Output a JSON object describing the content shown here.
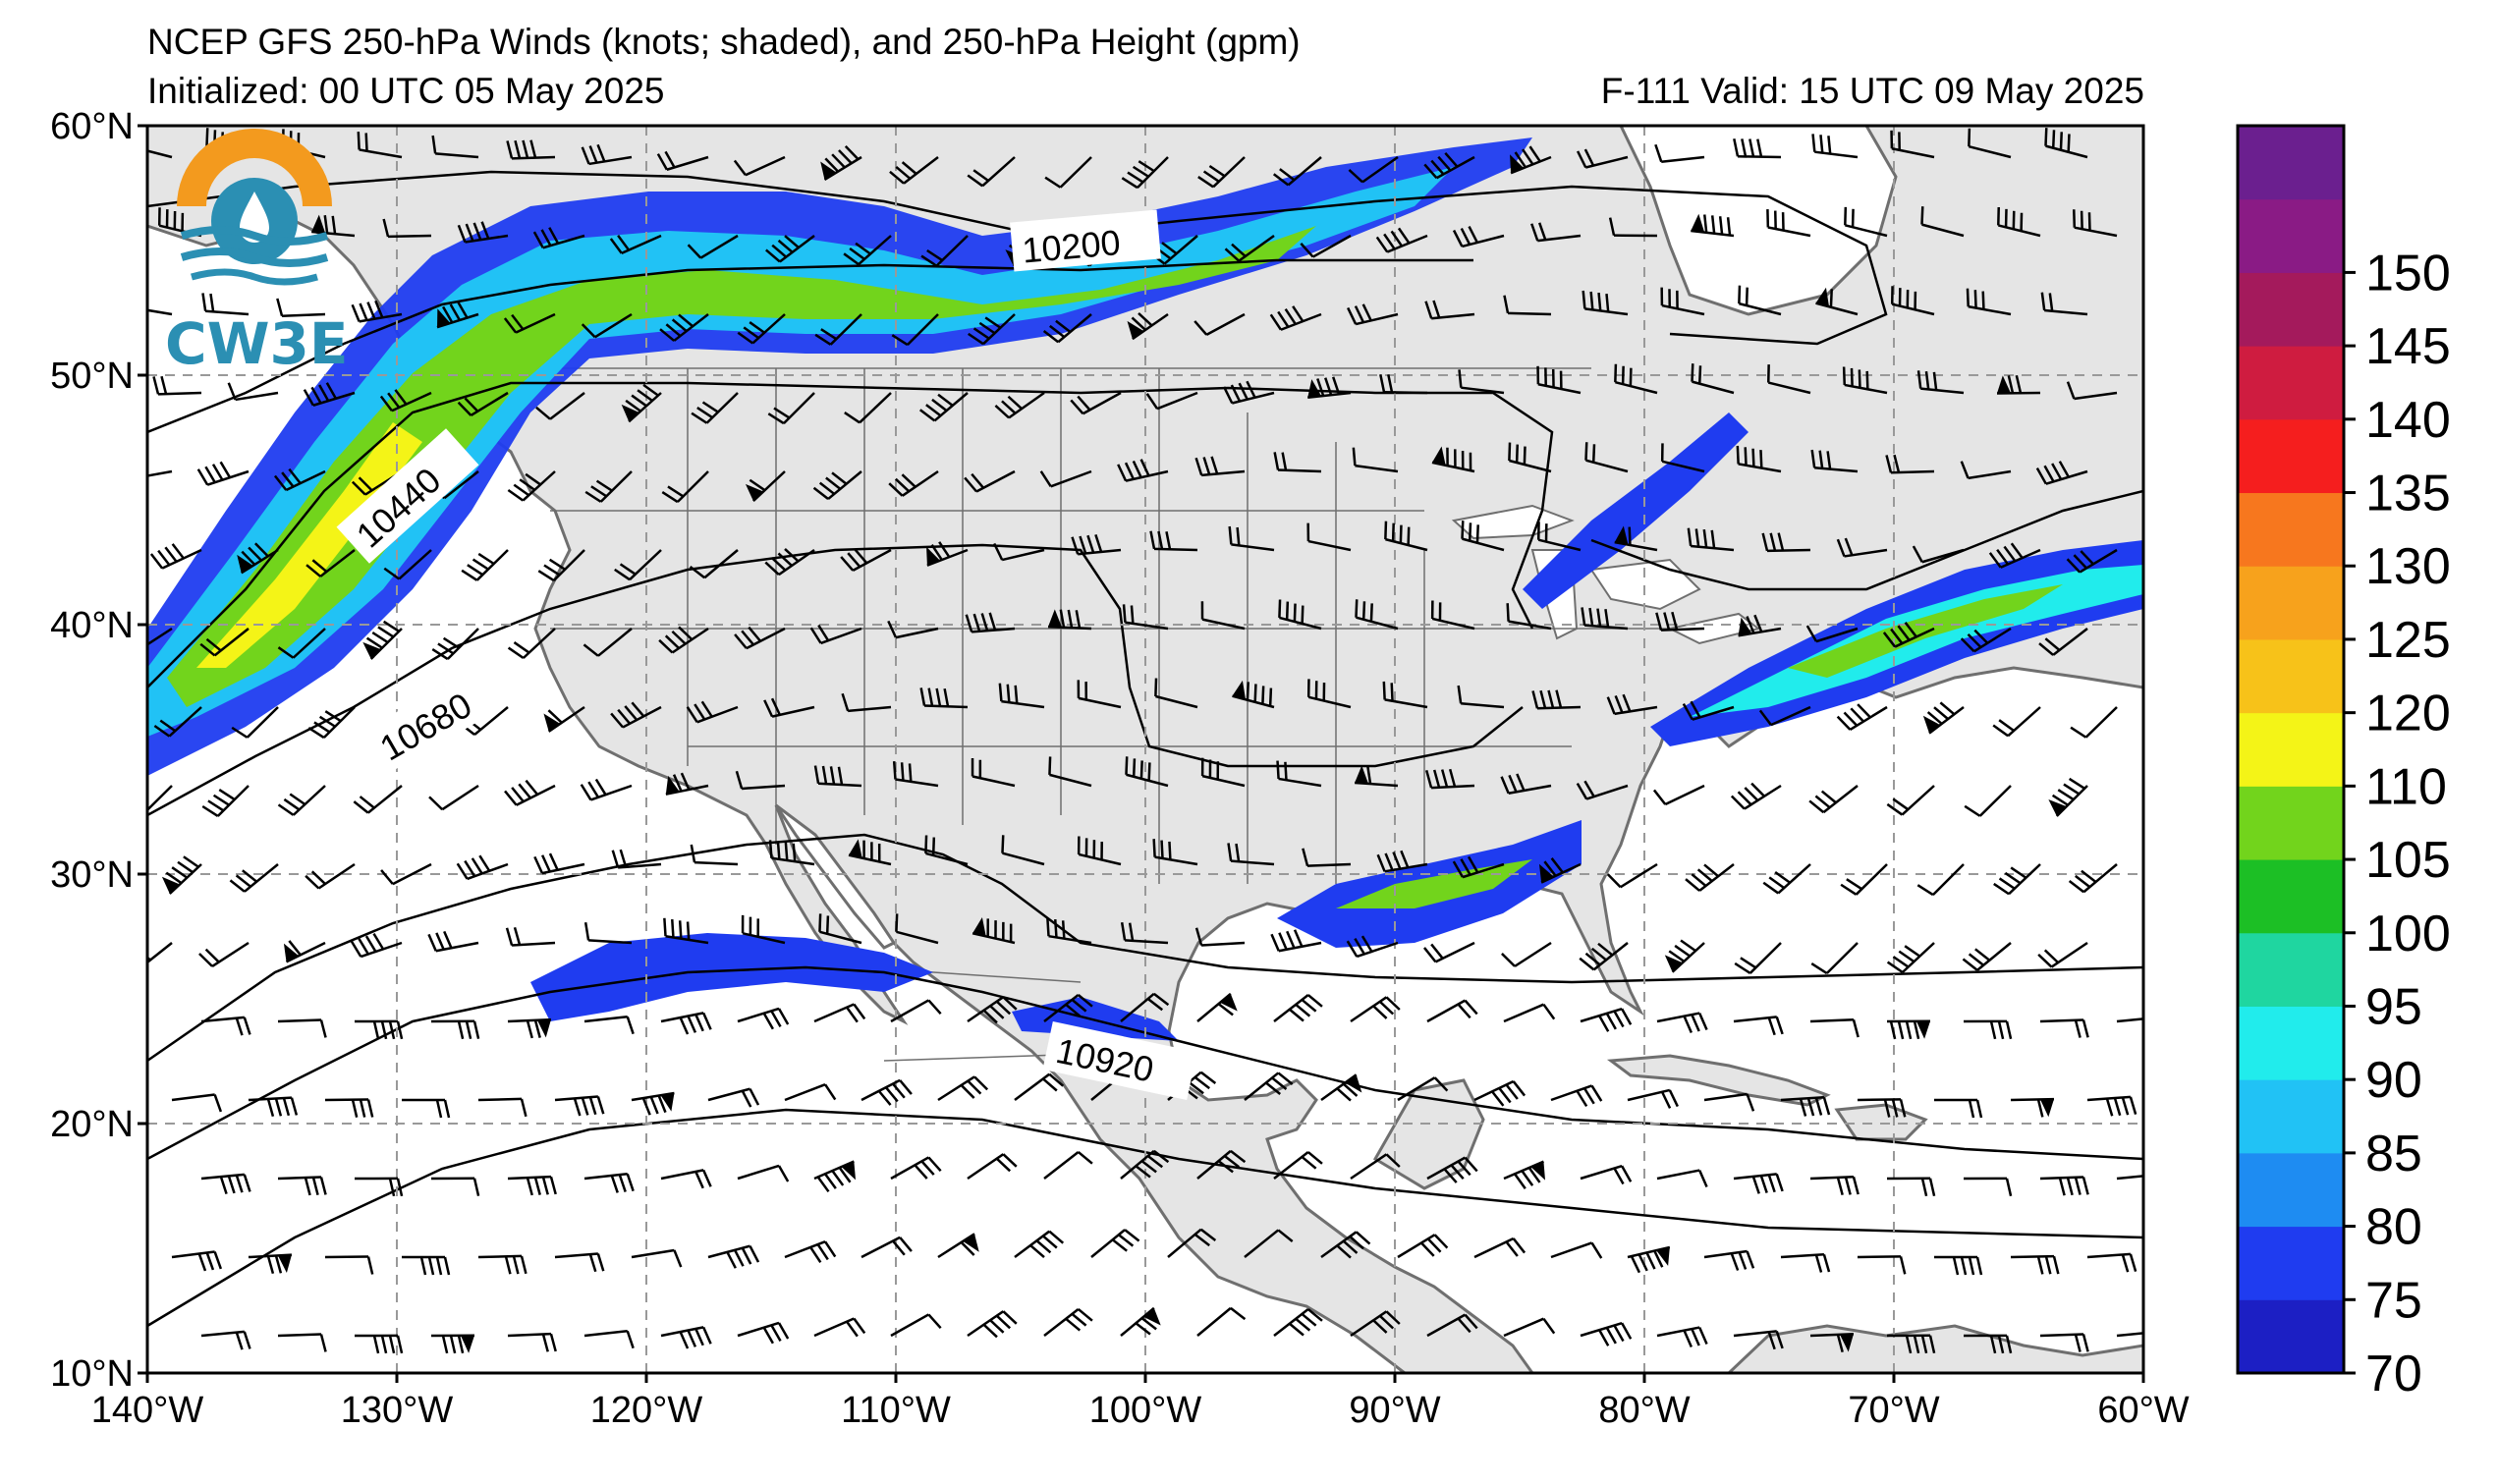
{
  "header": {
    "title": "NCEP GFS 250-hPa Winds (knots; shaded), and 250-hPa Height (gpm)",
    "initialized": "Initialized: 00 UTC 05 May 2025",
    "valid": "F-111  Valid: 15 UTC 09 May 2025"
  },
  "logo": {
    "text": "CW3E",
    "icon": "cw3e-logo-icon"
  },
  "axes": {
    "lon_labels": [
      "140°W",
      "130°W",
      "120°W",
      "110°W",
      "100°W",
      "90°W",
      "80°W",
      "70°W",
      "60°W"
    ],
    "lat_labels": [
      "60°N",
      "50°N",
      "40°N",
      "30°N",
      "20°N",
      "10°N"
    ],
    "lon_range": [
      -140,
      -60
    ],
    "lat_range": [
      10,
      60
    ]
  },
  "contour_labels": [
    "10200",
    "10440",
    "10680",
    "10920"
  ],
  "colorbar": {
    "levels": [
      "70",
      "75",
      "80",
      "85",
      "90",
      "95",
      "100",
      "105",
      "110",
      "120",
      "125",
      "130",
      "135",
      "140",
      "145",
      "150"
    ],
    "colors": [
      "#1c1fc4",
      "#1f3cf0",
      "#1e8cf2",
      "#21c2f5",
      "#21ecec",
      "#1fd6a0",
      "#1cbf25",
      "#72d41c",
      "#f4f417",
      "#f7c219",
      "#f7a21c",
      "#f7771e",
      "#f51e1e",
      "#cf1c40",
      "#a41a5c",
      "#8a1b85",
      "#6b1f8f"
    ]
  },
  "colors": {
    "land": "#e5e5e5",
    "ocean": "#ffffff",
    "coastline": "#6f6f6f",
    "grid": "#999999"
  }
}
